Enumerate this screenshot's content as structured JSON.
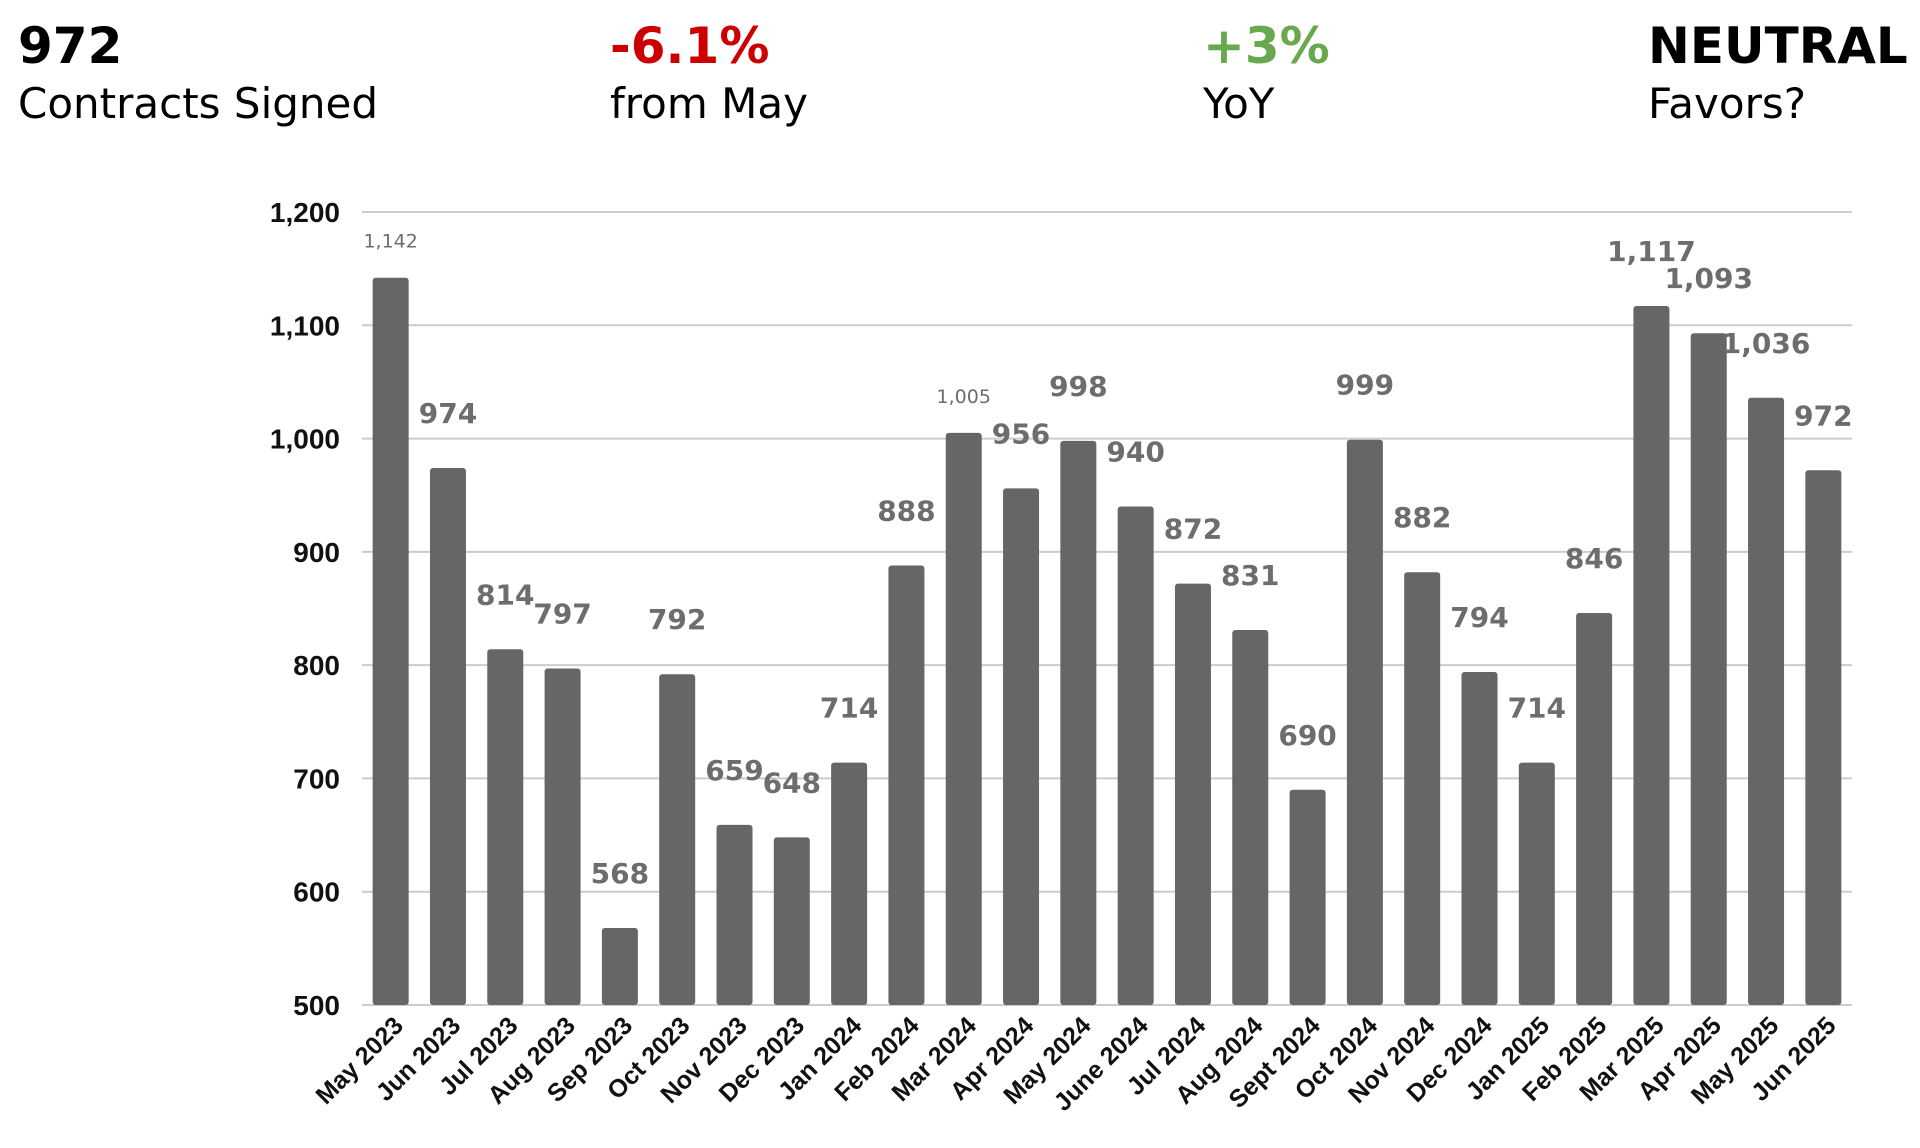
{
  "kpis": [
    {
      "value": "972",
      "label": "Contracts Signed",
      "color": "#000000"
    },
    {
      "value": "-6.1%",
      "label": "from May",
      "color": "#cc0000"
    },
    {
      "value": "+3%",
      "label": "YoY",
      "color": "#6aa84f"
    },
    {
      "value": "NEUTRAL",
      "label": "Favors?",
      "color": "#000000"
    }
  ],
  "chart_data": {
    "type": "bar",
    "categories": [
      "May 2023",
      "Jun 2023",
      "Jul 2023",
      "Aug 2023",
      "Sep 2023",
      "Oct 2023",
      "Nov 2023",
      "Dec 2023",
      "Jan 2024",
      "Feb 2024",
      "Mar 2024",
      "Apr 2024",
      "May 2024",
      "June 2024",
      "Jul 2024",
      "Aug 2024",
      "Sept 2024",
      "Oct 2024",
      "Nov 2024",
      "Dec 2024",
      "Jan 2025",
      "Feb 2025",
      "Mar 2025",
      "Apr 2025",
      "May 2025",
      "Jun 2025"
    ],
    "values": [
      1142,
      974,
      814,
      797,
      568,
      792,
      659,
      648,
      714,
      888,
      1005,
      956,
      998,
      940,
      872,
      831,
      690,
      999,
      882,
      794,
      714,
      846,
      1117,
      1093,
      1036,
      972
    ],
    "value_labels": [
      "1,142",
      "974",
      "814",
      "797",
      "568",
      "792",
      "659",
      "648",
      "714",
      "888",
      "1,005",
      "956",
      "998",
      "940",
      "872",
      "831",
      "690",
      "999",
      "882",
      "794",
      "714",
      "846",
      "1,117",
      "1,093",
      "1,036",
      "972"
    ],
    "ylim": [
      500,
      1200
    ],
    "yticks": [
      500,
      600,
      700,
      800,
      900,
      1000,
      1100,
      1200
    ],
    "ytick_labels": [
      "500",
      "600",
      "700",
      "800",
      "900",
      "1,000",
      "1,100",
      "1,200"
    ],
    "grid": true,
    "bar_color": "#666666",
    "grid_color": "#cccccc",
    "title": "",
    "xlabel": "",
    "ylabel": ""
  }
}
